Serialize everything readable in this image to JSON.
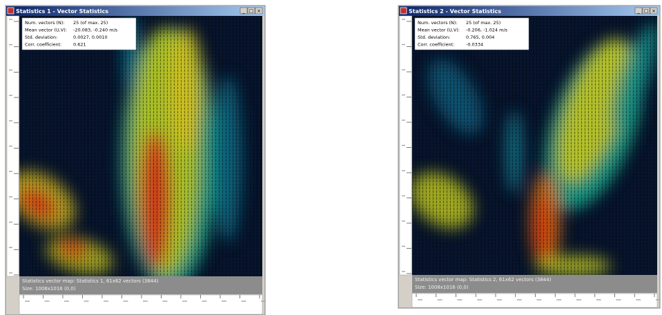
{
  "windows": [
    {
      "title": "Statistics 1 - Vector Statistics",
      "stats": [
        {
          "label": "Num. vectors (N):",
          "value": "25 (of max. 25)"
        },
        {
          "label": "Mean vector (U,V):",
          "value": "-20.083, -0.240 m/s"
        },
        {
          "label": "Std. deviation:",
          "value": "0.0027, 0.0010"
        },
        {
          "label": "Corr. coefficient:",
          "value": "0.621"
        }
      ],
      "status": [
        "Statistics vector map: Statistics 1, 61x62 vectors (3844)",
        "Size: 1008x1016 (0,0)"
      ]
    },
    {
      "title": "Statistics 2 - Vector Statistics",
      "stats": [
        {
          "label": "Num. vectors (N):",
          "value": "25 (of max. 25)"
        },
        {
          "label": "Mean vector (U,V):",
          "value": "-0.206, -1.024 m/s"
        },
        {
          "label": "Std. deviation:",
          "value": "0.765, 0.004"
        },
        {
          "label": "Corr. coefficient:",
          "value": "-0.0334"
        }
      ],
      "status": [
        "Statistics vector map: Statistics 2, 61x62 vectors (3844)",
        "Size: 1008x1016 (0,0)"
      ]
    }
  ]
}
